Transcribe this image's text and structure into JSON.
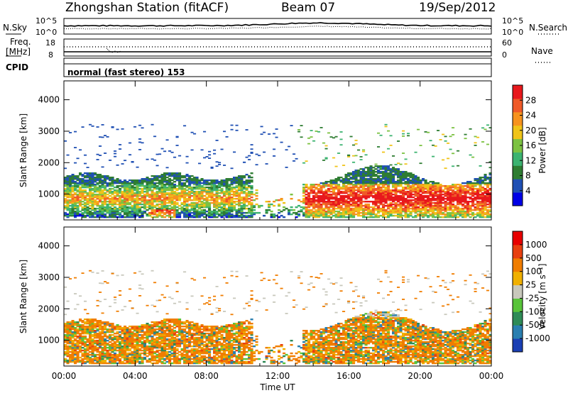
{
  "header": {
    "station": "Zhongshan Station (fitACF)",
    "beam": "Beam 07",
    "date": "19/Sep/2012"
  },
  "nsky": {
    "label": "N.Sky",
    "tick_top": "10^5",
    "tick_bottom": "10^0",
    "right_label": "N.Search",
    "right_tick_top": "10^5",
    "right_tick_bottom": "10^0"
  },
  "freq": {
    "label_line1": "Freq.",
    "label_line2": "[MHz]",
    "tick_top": "18",
    "tick_bottom": "8",
    "right_label": "Nave",
    "right_tick_top": "60",
    "right_tick_bottom": "0"
  },
  "cpid": {
    "label": "CPID",
    "value": "normal (fast stereo) 153"
  },
  "chart_data": [
    {
      "type": "heatmap",
      "panel": "power",
      "ylabel": "Slant Range [km]",
      "ylim": [
        180,
        4600
      ],
      "yticks": [
        "1000",
        "2000",
        "3000",
        "4000"
      ],
      "colorbar_label": "Power [dB]",
      "colorbar_ticks": [
        "28",
        "24",
        "20",
        "16",
        "12",
        "8",
        "4"
      ],
      "colorbar_range": [
        0,
        30
      ],
      "colors": [
        "#0000e6",
        "#2050b4",
        "#2e7d32",
        "#3cb371",
        "#7cc242",
        "#f0c419",
        "#f7931e",
        "#ef5a28",
        "#e8181c"
      ]
    },
    {
      "type": "heatmap",
      "panel": "velocity",
      "ylabel": "Slant Range [km]",
      "ylim": [
        180,
        4600
      ],
      "yticks": [
        "1000",
        "2000",
        "3000",
        "4000"
      ],
      "colorbar_label": "Velocity [m s⁻¹]",
      "colorbar_ticks": [
        "1000",
        "500",
        "100",
        "25",
        "-25",
        "-100",
        "-500",
        "-1000"
      ],
      "colors": [
        "#1a3fb4",
        "#2a7fb0",
        "#2e8b57",
        "#58c43a",
        "#c8c8bc",
        "#f0b000",
        "#f07d00",
        "#e84010",
        "#e80000"
      ]
    }
  ],
  "xaxis": {
    "label": "Time UT",
    "ticks": [
      "00:00",
      "04:00",
      "08:00",
      "12:00",
      "16:00",
      "20:00",
      "00:00"
    ]
  }
}
